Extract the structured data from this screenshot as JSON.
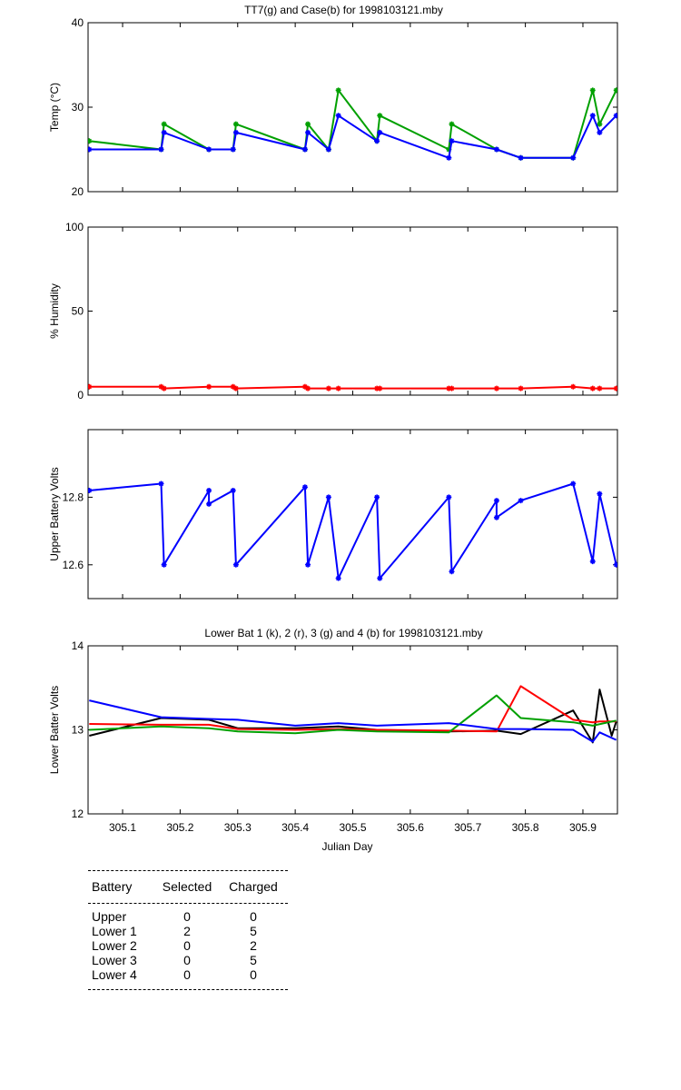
{
  "chart_data": [
    {
      "type": "line",
      "title": "TT7(g) and Case(b) for 1998103121.mby",
      "xlabel": "",
      "ylabel": "Temp  (°C)",
      "xlim": [
        305.04,
        305.96
      ],
      "ylim": [
        20,
        40
      ],
      "yticks": [
        20,
        30,
        40
      ],
      "grid": false,
      "series": [
        {
          "color": "#00a000",
          "markers": true,
          "points": [
            [
              305.042,
              26
            ],
            [
              305.167,
              25
            ],
            [
              305.172,
              28
            ],
            [
              305.25,
              25
            ],
            [
              305.292,
              25
            ],
            [
              305.297,
              28
            ],
            [
              305.417,
              25
            ],
            [
              305.422,
              28
            ],
            [
              305.458,
              25
            ],
            [
              305.475,
              32
            ],
            [
              305.542,
              26
            ],
            [
              305.547,
              29
            ],
            [
              305.667,
              25
            ],
            [
              305.672,
              28
            ],
            [
              305.75,
              25
            ],
            [
              305.792,
              24
            ],
            [
              305.883,
              24
            ],
            [
              305.917,
              32
            ],
            [
              305.929,
              28
            ],
            [
              305.958,
              32
            ]
          ]
        },
        {
          "color": "#0000ff",
          "markers": true,
          "points": [
            [
              305.042,
              25
            ],
            [
              305.167,
              25
            ],
            [
              305.172,
              27
            ],
            [
              305.25,
              25
            ],
            [
              305.292,
              25
            ],
            [
              305.297,
              27
            ],
            [
              305.417,
              25
            ],
            [
              305.422,
              27
            ],
            [
              305.458,
              25
            ],
            [
              305.475,
              29
            ],
            [
              305.542,
              26
            ],
            [
              305.547,
              27
            ],
            [
              305.667,
              24
            ],
            [
              305.672,
              26
            ],
            [
              305.75,
              25
            ],
            [
              305.792,
              24
            ],
            [
              305.883,
              24
            ],
            [
              305.917,
              29
            ],
            [
              305.929,
              27
            ],
            [
              305.958,
              29
            ]
          ]
        }
      ]
    },
    {
      "type": "line",
      "title": "",
      "xlabel": "",
      "ylabel": "% Humidity",
      "xlim": [
        305.04,
        305.96
      ],
      "ylim": [
        0,
        100
      ],
      "yticks": [
        0,
        50,
        100
      ],
      "grid": false,
      "series": [
        {
          "color": "#ff0000",
          "markers": true,
          "points": [
            [
              305.042,
              5
            ],
            [
              305.167,
              5
            ],
            [
              305.172,
              4
            ],
            [
              305.25,
              5
            ],
            [
              305.292,
              5
            ],
            [
              305.297,
              4
            ],
            [
              305.417,
              5
            ],
            [
              305.422,
              4
            ],
            [
              305.458,
              4
            ],
            [
              305.475,
              4
            ],
            [
              305.542,
              4
            ],
            [
              305.547,
              4
            ],
            [
              305.667,
              4
            ],
            [
              305.672,
              4
            ],
            [
              305.75,
              4
            ],
            [
              305.792,
              4
            ],
            [
              305.883,
              5
            ],
            [
              305.917,
              4
            ],
            [
              305.929,
              4
            ],
            [
              305.958,
              4
            ]
          ]
        }
      ]
    },
    {
      "type": "line",
      "title": "",
      "xlabel": "",
      "ylabel": "Upper Battery Volts",
      "xlim": [
        305.04,
        305.96
      ],
      "ylim": [
        12.5,
        13.0
      ],
      "yticks": [
        12.6,
        12.8
      ],
      "ytick_labels": [
        "12.6",
        "12.8"
      ],
      "grid": false,
      "series": [
        {
          "color": "#0000ff",
          "markers": true,
          "points": [
            [
              305.042,
              12.82
            ],
            [
              305.167,
              12.84
            ],
            [
              305.172,
              12.6
            ],
            [
              305.25,
              12.82
            ],
            [
              305.25,
              12.78
            ],
            [
              305.292,
              12.82
            ],
            [
              305.297,
              12.6
            ],
            [
              305.417,
              12.83
            ],
            [
              305.422,
              12.6
            ],
            [
              305.458,
              12.8
            ],
            [
              305.475,
              12.56
            ],
            [
              305.542,
              12.8
            ],
            [
              305.547,
              12.56
            ],
            [
              305.667,
              12.8
            ],
            [
              305.672,
              12.58
            ],
            [
              305.75,
              12.79
            ],
            [
              305.75,
              12.74
            ],
            [
              305.792,
              12.79
            ],
            [
              305.883,
              12.84
            ],
            [
              305.917,
              12.61
            ],
            [
              305.929,
              12.81
            ],
            [
              305.958,
              12.6
            ]
          ]
        }
      ]
    },
    {
      "type": "line",
      "title": "Lower Bat 1 (k), 2 (r), 3 (g) and 4 (b) for 1998103121.mby",
      "xlabel": "Julian Day",
      "ylabel": "Lower Batter Volts",
      "xlim": [
        305.04,
        305.96
      ],
      "ylim": [
        12,
        14
      ],
      "yticks": [
        12,
        13,
        14
      ],
      "xticks": [
        305.1,
        305.2,
        305.3,
        305.4,
        305.5,
        305.6,
        305.7,
        305.8,
        305.9
      ],
      "xtick_labels": [
        "305.1",
        "305.2",
        "305.3",
        "305.4",
        "305.5",
        "305.6",
        "305.7",
        "305.8",
        "305.9"
      ],
      "grid": false,
      "series": [
        {
          "color": "#000000",
          "markers": false,
          "points": [
            [
              305.042,
              12.93
            ],
            [
              305.167,
              13.14
            ],
            [
              305.25,
              13.12
            ],
            [
              305.3,
              13.02
            ],
            [
              305.4,
              13.02
            ],
            [
              305.475,
              13.04
            ],
            [
              305.542,
              13.0
            ],
            [
              305.667,
              12.98
            ],
            [
              305.75,
              12.99
            ],
            [
              305.792,
              12.95
            ],
            [
              305.883,
              13.23
            ],
            [
              305.917,
              12.85
            ],
            [
              305.929,
              13.48
            ],
            [
              305.95,
              12.93
            ],
            [
              305.958,
              13.1
            ]
          ]
        },
        {
          "color": "#ff0000",
          "markers": false,
          "points": [
            [
              305.042,
              13.07
            ],
            [
              305.167,
              13.06
            ],
            [
              305.25,
              13.06
            ],
            [
              305.3,
              13.01
            ],
            [
              305.4,
              13.0
            ],
            [
              305.475,
              13.01
            ],
            [
              305.542,
              13.0
            ],
            [
              305.667,
              12.99
            ],
            [
              305.75,
              12.98
            ],
            [
              305.792,
              13.52
            ],
            [
              305.883,
              13.12
            ],
            [
              305.917,
              13.09
            ],
            [
              305.929,
              13.1
            ],
            [
              305.958,
              13.1
            ]
          ]
        },
        {
          "color": "#00a000",
          "markers": false,
          "points": [
            [
              305.042,
              13.0
            ],
            [
              305.167,
              13.04
            ],
            [
              305.25,
              13.02
            ],
            [
              305.3,
              12.98
            ],
            [
              305.4,
              12.96
            ],
            [
              305.475,
              13.0
            ],
            [
              305.542,
              12.98
            ],
            [
              305.667,
              12.97
            ],
            [
              305.75,
              13.41
            ],
            [
              305.792,
              13.14
            ],
            [
              305.883,
              13.09
            ],
            [
              305.917,
              13.05
            ],
            [
              305.958,
              13.11
            ]
          ]
        },
        {
          "color": "#0000ff",
          "markers": false,
          "points": [
            [
              305.042,
              13.35
            ],
            [
              305.167,
              13.15
            ],
            [
              305.25,
              13.13
            ],
            [
              305.3,
              13.12
            ],
            [
              305.4,
              13.05
            ],
            [
              305.475,
              13.08
            ],
            [
              305.542,
              13.05
            ],
            [
              305.667,
              13.08
            ],
            [
              305.75,
              13.01
            ],
            [
              305.792,
              13.01
            ],
            [
              305.883,
              13.0
            ],
            [
              305.917,
              12.86
            ],
            [
              305.929,
              12.97
            ],
            [
              305.958,
              12.88
            ]
          ]
        }
      ]
    }
  ],
  "battery_table": {
    "headers": {
      "battery": "Battery",
      "selected": "Selected",
      "charged": "Charged"
    },
    "rows": [
      {
        "battery": "Upper",
        "selected": "0",
        "charged": "0"
      },
      {
        "battery": "Lower 1",
        "selected": "2",
        "charged": "5"
      },
      {
        "battery": "Lower 2",
        "selected": "0",
        "charged": "2"
      },
      {
        "battery": "Lower 3",
        "selected": "0",
        "charged": "5"
      },
      {
        "battery": "Lower 4",
        "selected": "0",
        "charged": "0"
      }
    ]
  }
}
